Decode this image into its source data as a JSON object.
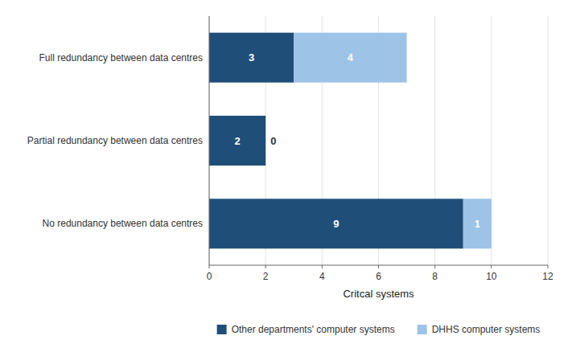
{
  "chart_data": {
    "type": "bar",
    "orientation": "horizontal",
    "stacked": true,
    "categories": [
      "No redundancy between data centres",
      "Partial redundancy between data centres",
      "Full redundancy between data centres"
    ],
    "series": [
      {
        "name": "Other departments' computer systems",
        "color": "#1F4E79",
        "values": [
          9,
          2,
          3
        ]
      },
      {
        "name": "DHHS computer systems",
        "color": "#9DC3E6",
        "values": [
          1,
          0,
          4
        ]
      }
    ],
    "xlabel": "Critcal systems",
    "xlim": [
      0,
      12
    ],
    "xticks": [
      0,
      2,
      4,
      6,
      8,
      10,
      12
    ],
    "grid": true,
    "data_labels": true,
    "legend": "bottom"
  }
}
